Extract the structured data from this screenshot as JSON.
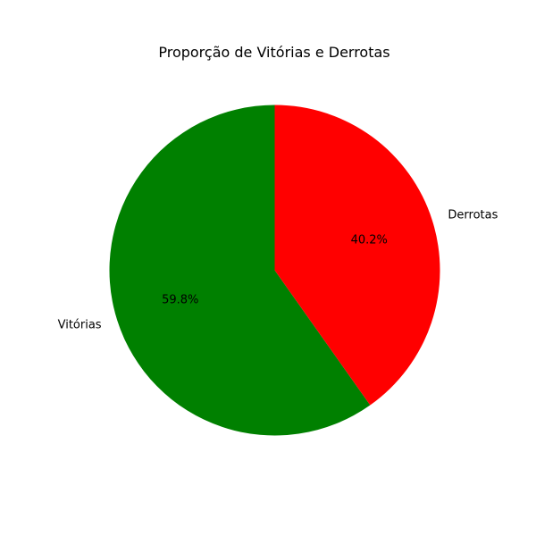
{
  "chart_data": {
    "type": "pie",
    "title": "Proporção de Vitórias e Derrotas",
    "labels": [
      "Vitórias",
      "Derrotas"
    ],
    "values": [
      59.8,
      40.2
    ],
    "autopct_labels": [
      "59.8%",
      "40.2%"
    ],
    "colors": [
      "#008000",
      "#ff0000"
    ],
    "start_angle_deg": 90,
    "direction": "counterclockwise",
    "legend": "none"
  }
}
